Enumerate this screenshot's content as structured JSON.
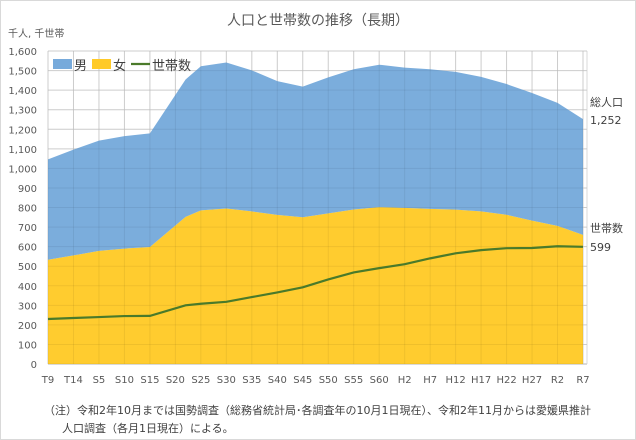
{
  "chart_data": {
    "type": "area",
    "stacked": true,
    "title": "人口と世帯数の推移（長期）",
    "ylabel": "千人, 千世帯",
    "ylim": [
      0,
      1600
    ],
    "yticks": [
      "0",
      "100",
      "200",
      "300",
      "400",
      "500",
      "600",
      "700",
      "800",
      "900",
      "1,000",
      "1,100",
      "1,200",
      "1,300",
      "1,400",
      "1,500",
      "1,600"
    ],
    "ytick_values": [
      0,
      100,
      200,
      300,
      400,
      500,
      600,
      700,
      800,
      900,
      1000,
      1100,
      1200,
      1300,
      1400,
      1500,
      1600
    ],
    "xticks": [
      "T9",
      "T14",
      "S5",
      "S10",
      "S15",
      "S20",
      "S25",
      "S30",
      "S35",
      "S40",
      "S45",
      "S50",
      "S55",
      "S60",
      "H2",
      "H7",
      "H12",
      "H17",
      "H22",
      "H27",
      "R2",
      "R7"
    ],
    "xtick_years": [
      1920,
      1925,
      1930,
      1935,
      1940,
      1945,
      1950,
      1955,
      1960,
      1965,
      1970,
      1975,
      1980,
      1985,
      1990,
      1995,
      2000,
      2005,
      2010,
      2015,
      2020,
      2025
    ],
    "x": [
      1920,
      1925,
      1930,
      1935,
      1940,
      1947,
      1950,
      1955,
      1960,
      1965,
      1970,
      1975,
      1980,
      1985,
      1990,
      1995,
      2000,
      2005,
      2010,
      2015,
      2020,
      2025
    ],
    "series": [
      {
        "name": "女",
        "kind": "area",
        "color": "#ffca28",
        "values": [
          533,
          555,
          578,
          590,
          598,
          752,
          785,
          795,
          780,
          762,
          750,
          770,
          790,
          802,
          798,
          793,
          789,
          780,
          763,
          733,
          706,
          660
        ]
      },
      {
        "name": "男",
        "kind": "area",
        "color": "#77aadb",
        "values": [
          513,
          541,
          564,
          575,
          581,
          702,
          737,
          746,
          721,
          684,
          668,
          695,
          717,
          728,
          717,
          714,
          704,
          688,
          668,
          652,
          629,
          592
        ]
      },
      {
        "name": "世帯数",
        "kind": "line",
        "color": "#4a7a2a",
        "values": [
          230,
          235,
          240,
          245,
          246,
          300,
          308,
          318,
          342,
          366,
          392,
          432,
          468,
          490,
          510,
          540,
          566,
          582,
          592,
          593,
          602,
          599
        ]
      }
    ],
    "legend": [
      "男",
      "女",
      "世帯数"
    ],
    "legend_position": "top-left",
    "grid": true,
    "annotations": [
      {
        "label": "総人口",
        "value": "1,252"
      },
      {
        "label": "世帯数",
        "value": "599"
      }
    ]
  },
  "footnote": {
    "line1": "（注）令和2年10月までは国勢調査（総務省統計局･各調査年の10月1日現在）、令和2年11月からは愛媛県推計",
    "line2": "人口調査（各月1日現在）による。"
  }
}
